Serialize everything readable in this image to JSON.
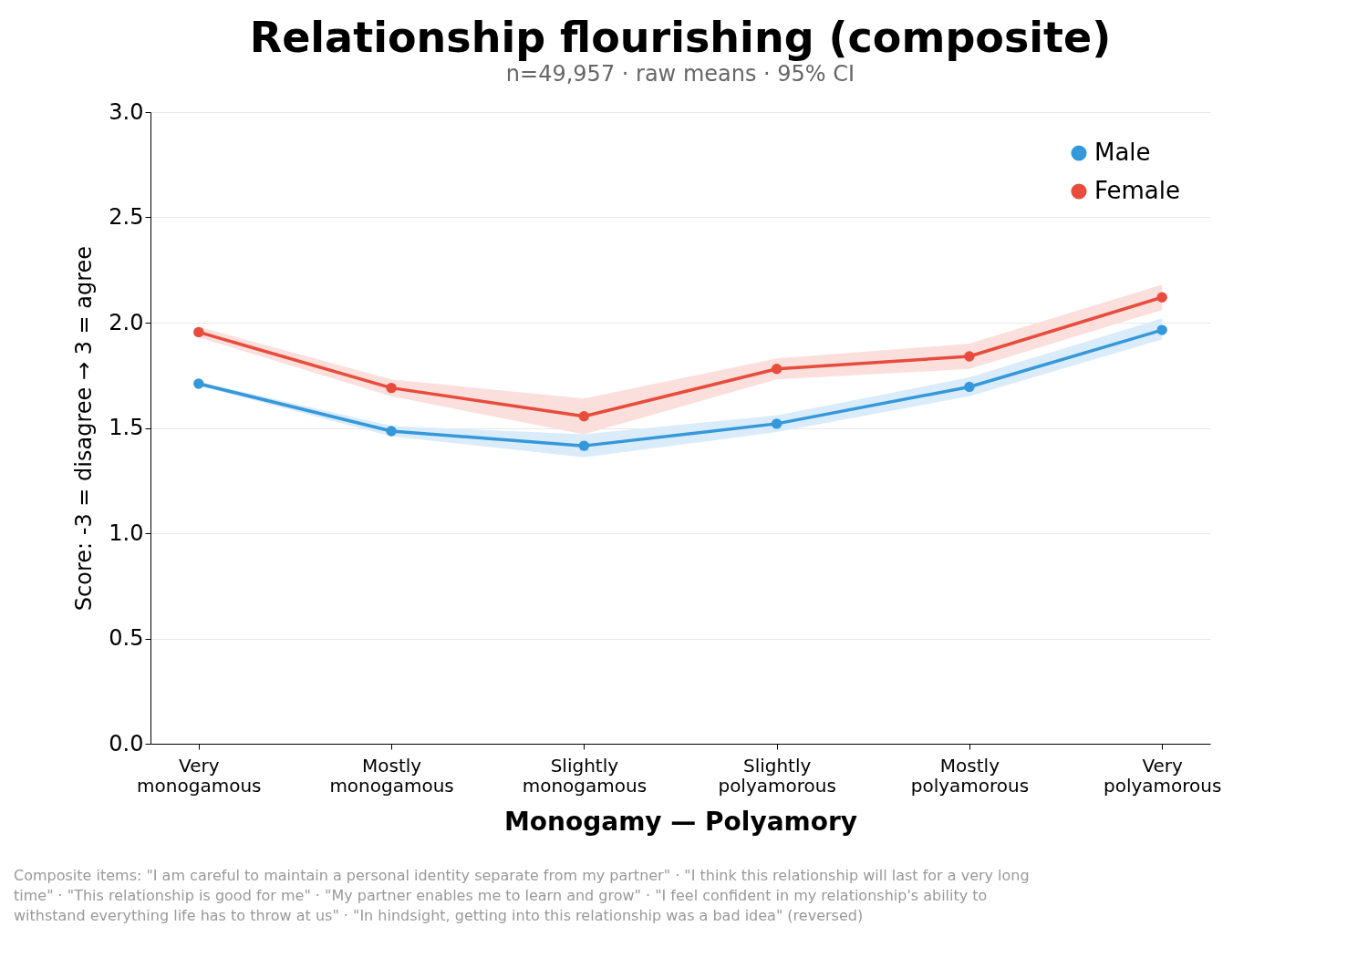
{
  "chart_data": {
    "type": "line",
    "title": "Relationship flourishing (composite)",
    "subtitle": "n=49,957 · raw means · 95% CI",
    "xlabel": "Monogamy — Polyamory",
    "ylabel": "Score: -3 = disagree → 3 = agree",
    "categories": [
      "Very monogamous",
      "Mostly monogamous",
      "Slightly monogamous",
      "Slightly polyamorous",
      "Mostly polyamorous",
      "Very polyamorous"
    ],
    "series": [
      {
        "name": "Male",
        "color": "#3498db",
        "values": [
          1.71,
          1.485,
          1.415,
          1.52,
          1.695,
          1.965
        ],
        "lower": [
          1.7,
          1.46,
          1.36,
          1.48,
          1.65,
          1.92
        ],
        "upper": [
          1.72,
          1.51,
          1.47,
          1.56,
          1.74,
          2.02
        ]
      },
      {
        "name": "Female",
        "color": "#e74c3c",
        "values": [
          1.955,
          1.69,
          1.555,
          1.78,
          1.84,
          2.12
        ],
        "lower": [
          1.93,
          1.65,
          1.47,
          1.73,
          1.78,
          2.06
        ],
        "upper": [
          1.98,
          1.73,
          1.64,
          1.83,
          1.9,
          2.18
        ]
      }
    ],
    "ylim": [
      0,
      3
    ],
    "yticks": [
      {
        "value": 0,
        "label": "0.0"
      },
      {
        "value": 0.5,
        "label": "0.5"
      },
      {
        "value": 1,
        "label": "1.0"
      },
      {
        "value": 1.5,
        "label": "1.5"
      },
      {
        "value": 2,
        "label": "2.0"
      },
      {
        "value": 2.5,
        "label": "2.5"
      },
      {
        "value": 3,
        "label": "3.0"
      }
    ],
    "grid": "y",
    "legend": "top right",
    "marker": "circle",
    "line_style": "solid",
    "annotations": [
      "Composite items: \"I am careful to maintain a personal identity separate from my partner\" · \"I think this relationship will last for a very long time\" · \"This relationship is good for me\" · \"My partner enables me to learn and grow\" · \"I feel confident in my relationship's ability to withstand everything life has to throw at us\" · \"In hindsight, getting into this relationship was a bad idea\" (reversed)"
    ]
  }
}
